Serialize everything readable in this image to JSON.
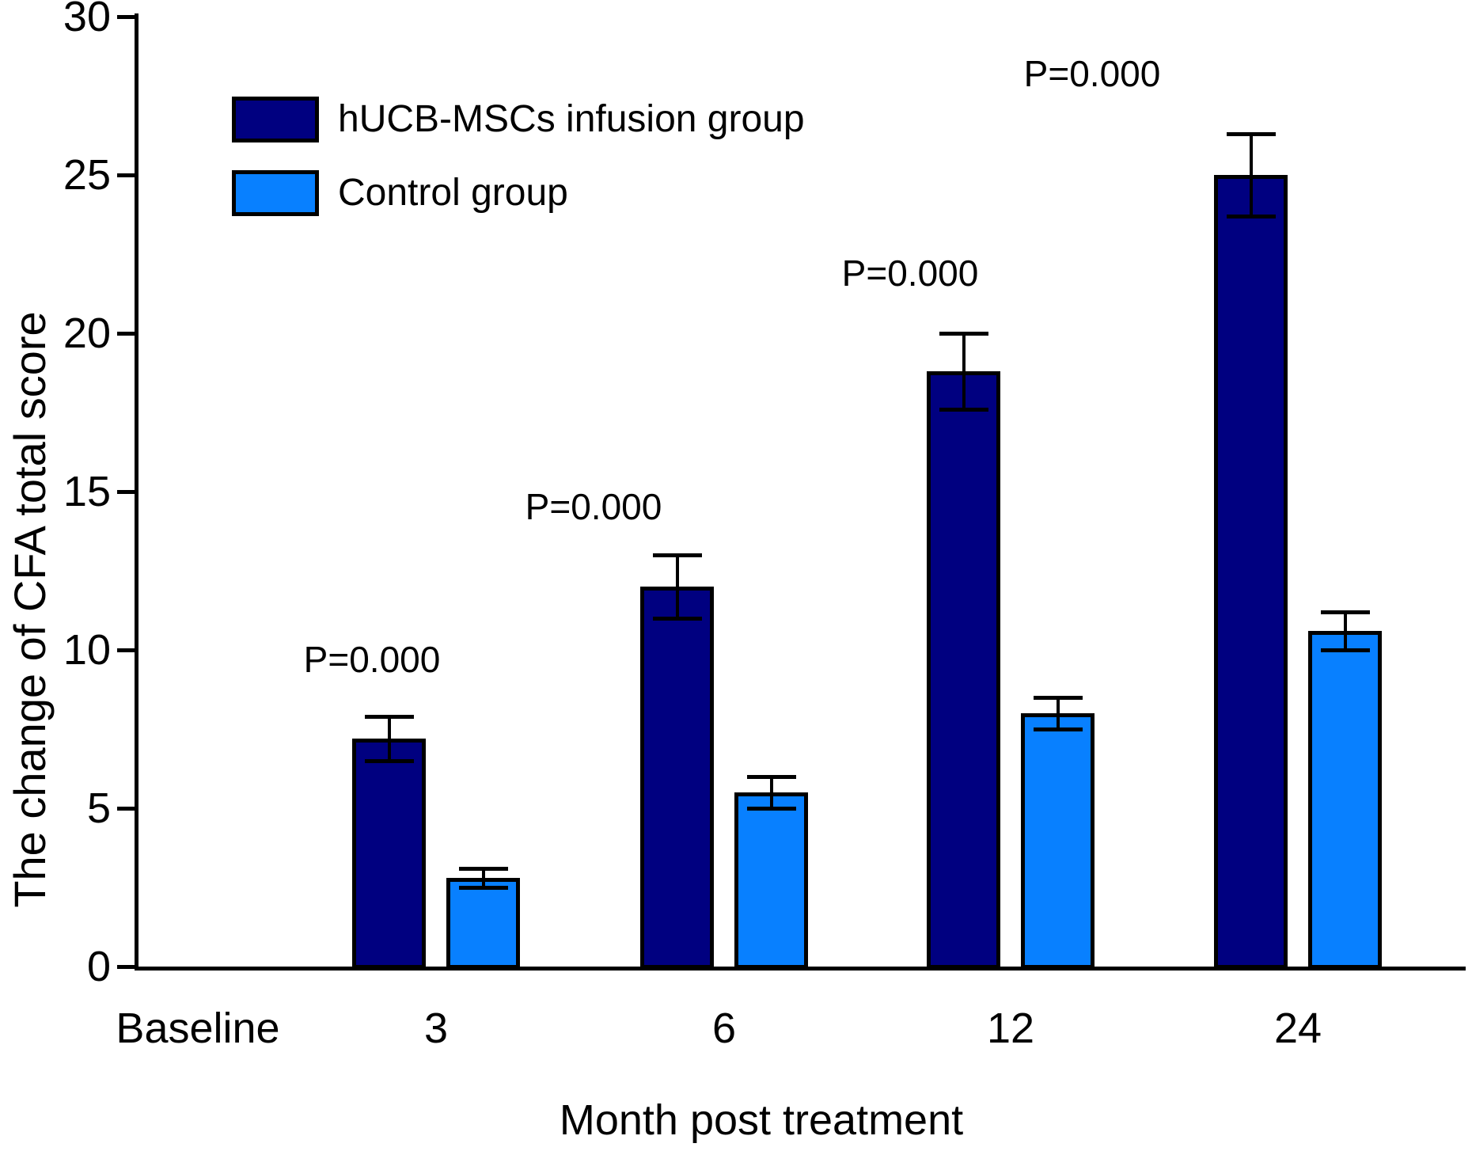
{
  "figure": {
    "background": "#ffffff",
    "text_color": "#000000"
  },
  "chart_data": {
    "type": "bar",
    "title": "",
    "xlabel": "Month post treatment",
    "ylabel": "The change of CFA total score",
    "categories": [
      "Baseline",
      "3",
      "6",
      "12",
      "24"
    ],
    "series": [
      {
        "name": "hUCB-MSCs infusion group",
        "color": "#000080",
        "values": [
          null,
          7.2,
          12.0,
          18.8,
          25.0
        ],
        "errors": [
          null,
          0.7,
          1.0,
          1.2,
          1.3
        ]
      },
      {
        "name": "Control group",
        "color": "#0880ff",
        "values": [
          null,
          2.8,
          5.5,
          8.0,
          10.6
        ],
        "errors": [
          null,
          0.3,
          0.5,
          0.5,
          0.6
        ]
      }
    ],
    "annotations": [
      {
        "text": "P=0.000",
        "category": "3"
      },
      {
        "text": "P=0.000",
        "category": "6"
      },
      {
        "text": "P=0.000",
        "category": "12"
      },
      {
        "text": "P=0.000",
        "category": "24"
      }
    ],
    "ylim": [
      0,
      30
    ],
    "yticks": [
      0,
      5,
      10,
      15,
      20,
      25,
      30
    ],
    "legend_position": "top-left",
    "grid": false
  }
}
